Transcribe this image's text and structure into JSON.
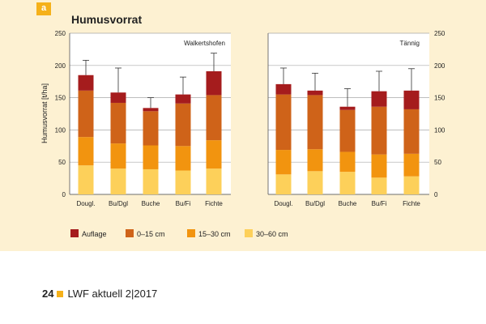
{
  "badge": "a",
  "title": "Humusvorrat",
  "chart_data": {
    "type": "bar",
    "stacked": true,
    "ylabel": "Humusvorrat [t/ha]",
    "ylim": [
      0,
      250
    ],
    "yticks": [
      0,
      50,
      100,
      150,
      200,
      250
    ],
    "grid": true,
    "legend": "bottom",
    "layers": [
      {
        "name": "30–60 cm",
        "color": "#fdd05a"
      },
      {
        "name": "15–30 cm",
        "color": "#f2940f"
      },
      {
        "name": "0–15 cm",
        "color": "#cf6319"
      },
      {
        "name": "Auflage",
        "color": "#a51c1d"
      }
    ],
    "legend_order": [
      "Auflage",
      "0–15 cm",
      "15–30 cm",
      "30–60 cm"
    ],
    "panels": [
      {
        "label": "Walkertshofen",
        "categories": [
          "Dougl.",
          "Bu/Dgl",
          "Buche",
          "Bu/Fi",
          "Fichte"
        ],
        "cumulative": [
          [
            45,
            89,
            161,
            185
          ],
          [
            40,
            79,
            142,
            158
          ],
          [
            39,
            76,
            129,
            134
          ],
          [
            37,
            75,
            141,
            155
          ],
          [
            40,
            84,
            154,
            191
          ]
        ],
        "error_top": [
          208,
          196,
          150,
          182,
          219
        ]
      },
      {
        "label": "Tännig",
        "categories": [
          "Dougl.",
          "Bu/Dgl",
          "Buche",
          "Bu/Fi",
          "Fichte"
        ],
        "cumulative": [
          [
            31,
            69,
            155,
            171
          ],
          [
            36,
            70,
            154,
            161
          ],
          [
            35,
            66,
            131,
            136
          ],
          [
            26,
            62,
            136,
            160
          ],
          [
            28,
            63,
            132,
            161
          ]
        ],
        "error_top": [
          196,
          188,
          164,
          191,
          195
        ]
      }
    ]
  },
  "footer": {
    "page": "24",
    "text": "LWF aktuell  2|2017"
  }
}
